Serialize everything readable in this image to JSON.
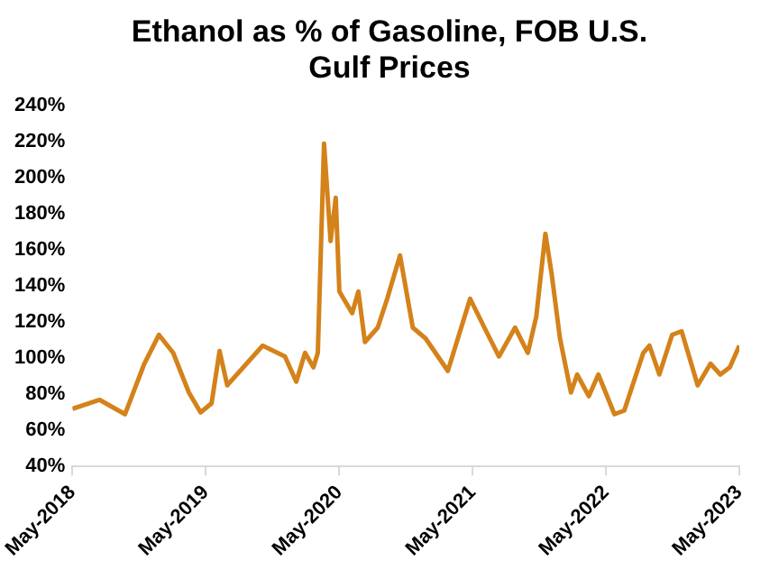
{
  "chart_data": {
    "type": "line",
    "title": "Ethanol as % of Gasoline, FOB U.S. Gulf Prices",
    "x": [
      "2018-05-01",
      "2018-07-14",
      "2018-09-22",
      "2018-11-14",
      "2018-12-24",
      "2019-02-01",
      "2019-03-16",
      "2019-04-17",
      "2019-05-17",
      "2019-06-08",
      "2019-06-29",
      "2019-10-04",
      "2019-12-04",
      "2020-01-04",
      "2020-01-28",
      "2020-02-20",
      "2020-03-03",
      "2020-03-20",
      "2020-04-07",
      "2020-04-21",
      "2020-05-01",
      "2020-06-05",
      "2020-06-22",
      "2020-07-10",
      "2020-08-14",
      "2020-09-09",
      "2020-10-14",
      "2020-11-18",
      "2020-12-23",
      "2021-02-22",
      "2021-04-24",
      "2021-06-07",
      "2021-07-12",
      "2021-08-25",
      "2021-09-29",
      "2021-10-22",
      "2021-11-16",
      "2021-12-03",
      "2021-12-26",
      "2022-01-25",
      "2022-02-11",
      "2022-03-15",
      "2022-04-10",
      "2022-05-24",
      "2022-06-20",
      "2022-08-11",
      "2022-08-28",
      "2022-09-24",
      "2022-10-29",
      "2022-11-24",
      "2023-01-07",
      "2023-02-11",
      "2023-03-10",
      "2023-04-05",
      "2023-05-01"
    ],
    "series": [
      {
        "color": "#d4821a",
        "values": [
          72,
          77,
          69,
          97,
          113,
          103,
          81,
          70,
          75,
          104,
          85,
          107,
          101,
          87,
          103,
          95,
          103,
          219,
          165,
          189,
          137,
          125,
          137,
          109,
          117,
          133,
          157,
          117,
          111,
          93,
          133,
          115,
          101,
          117,
          103,
          123,
          169,
          147,
          111,
          81,
          91,
          79,
          91,
          69,
          71,
          103,
          107,
          91,
          113,
          115,
          85,
          97,
          91,
          95,
          107
        ]
      }
    ],
    "xlim": [
      "2018-05-01",
      "2023-05-01"
    ],
    "xticks": [
      {
        "value": "2018-05-01",
        "label": "May-2018"
      },
      {
        "value": "2019-05-01",
        "label": "May-2019"
      },
      {
        "value": "2020-05-01",
        "label": "May-2020"
      },
      {
        "value": "2021-05-01",
        "label": "May-2021"
      },
      {
        "value": "2022-05-01",
        "label": "May-2022"
      },
      {
        "value": "2023-05-01",
        "label": "May-2023"
      }
    ],
    "ylim": [
      40,
      240
    ],
    "yticks": [
      {
        "value": 40,
        "label": "40%"
      },
      {
        "value": 60,
        "label": "60%"
      },
      {
        "value": 80,
        "label": "80%"
      },
      {
        "value": 100,
        "label": "100%"
      },
      {
        "value": 120,
        "label": "120%"
      },
      {
        "value": 140,
        "label": "140%"
      },
      {
        "value": 160,
        "label": "160%"
      },
      {
        "value": 180,
        "label": "180%"
      },
      {
        "value": 200,
        "label": "200%"
      },
      {
        "value": 220,
        "label": "220%"
      },
      {
        "value": 240,
        "label": "240%"
      }
    ],
    "grid": false,
    "legend": false,
    "marker": "none",
    "line_style": "solid"
  }
}
